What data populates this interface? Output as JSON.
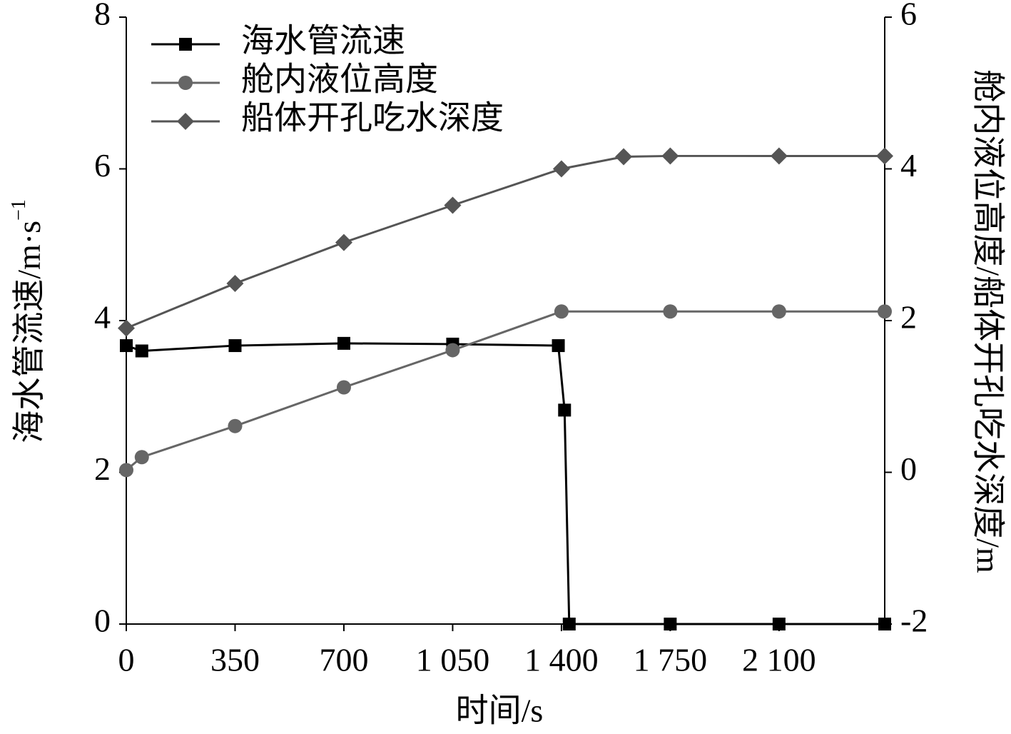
{
  "chart_data": {
    "type": "line",
    "x_label": "时间/s",
    "y_label": "海水管流速/m·s",
    "y_label_sup": "−1",
    "y2_label": "舱内液位高度/船体开孔吃水深度/m",
    "xlim": [
      0,
      2440
    ],
    "xticks": [
      0,
      350,
      700,
      {
        "value": 1050,
        "label": "1 050"
      },
      {
        "value": 1400,
        "label": "1 400"
      },
      {
        "value": 1750,
        "label": "1 750"
      },
      {
        "value": 2100,
        "label": "2 100"
      }
    ],
    "ylim": [
      0,
      8
    ],
    "yticks": [
      0,
      2,
      4,
      6,
      8
    ],
    "y2lim": [
      -2,
      6
    ],
    "y2ticks": [
      -2,
      0,
      2,
      4,
      6
    ],
    "legend": "upper left",
    "series": [
      {
        "name": "海水管流速",
        "color": "#000000",
        "marker": "square",
        "x": [
          0,
          50,
          350,
          700,
          1050,
          1390,
          1410,
          1425,
          1750,
          2100,
          2440
        ],
        "values": [
          3.67,
          3.6,
          3.67,
          3.7,
          3.69,
          3.67,
          2.82,
          0,
          0,
          0,
          0
        ]
      },
      {
        "name": "舱内液位高度",
        "color": "#666666",
        "marker": "circle",
        "axis": "y2",
        "x": [
          0,
          50,
          350,
          700,
          1050,
          1400,
          1750,
          2100,
          2440
        ],
        "values": [
          0.03,
          0.2,
          0.61,
          1.12,
          1.61,
          2.12,
          2.12,
          2.12,
          2.12
        ]
      },
      {
        "name": "船体开孔吃水深度",
        "color": "#555555",
        "marker": "diamond",
        "axis": "y2",
        "x": [
          0,
          350,
          700,
          1050,
          1400,
          1600,
          1750,
          2100,
          2440
        ],
        "values": [
          1.9,
          2.49,
          3.03,
          3.52,
          4.0,
          4.16,
          4.17,
          4.17,
          4.17
        ]
      }
    ]
  }
}
